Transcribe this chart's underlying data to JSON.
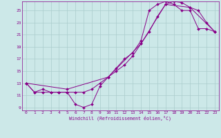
{
  "xlabel": "Windchill (Refroidissement éolien,°C)",
  "bg_color": "#cce8e8",
  "grid_color": "#aacccc",
  "line_color": "#880088",
  "xlim": [
    -0.5,
    23.5
  ],
  "ylim": [
    8.5,
    26.5
  ],
  "xticks": [
    0,
    1,
    2,
    3,
    4,
    5,
    6,
    7,
    8,
    9,
    10,
    11,
    12,
    13,
    14,
    15,
    16,
    17,
    18,
    19,
    20,
    21,
    22,
    23
  ],
  "yticks": [
    9,
    11,
    13,
    15,
    17,
    19,
    21,
    23,
    25
  ],
  "line1_x": [
    0,
    1,
    2,
    3,
    4,
    5,
    6,
    7,
    8,
    9,
    10,
    11,
    12,
    13,
    14,
    15,
    16,
    17,
    18,
    19,
    20,
    21,
    22,
    23
  ],
  "line1_y": [
    13,
    11.5,
    11.5,
    11.5,
    11.5,
    11.5,
    9.5,
    9,
    9.5,
    12.5,
    14,
    15,
    16,
    17.5,
    19.5,
    21.5,
    24,
    26,
    26.5,
    26.3,
    25.5,
    25,
    23,
    21.5
  ],
  "line2_x": [
    0,
    1,
    2,
    3,
    4,
    5,
    6,
    7,
    8,
    9,
    10,
    11,
    12,
    13,
    14,
    15,
    16,
    17,
    18,
    19,
    20,
    21,
    22,
    23
  ],
  "line2_y": [
    13,
    11.5,
    12,
    11.5,
    11.5,
    11.5,
    11.5,
    11.5,
    12,
    13,
    14,
    15.5,
    17,
    18,
    20,
    25,
    26,
    26.5,
    26,
    25,
    25,
    22,
    22,
    21.5
  ],
  "line3_x": [
    0,
    5,
    10,
    14,
    17,
    20,
    23
  ],
  "line3_y": [
    13,
    12,
    14,
    19.5,
    26,
    25.5,
    21.5
  ]
}
